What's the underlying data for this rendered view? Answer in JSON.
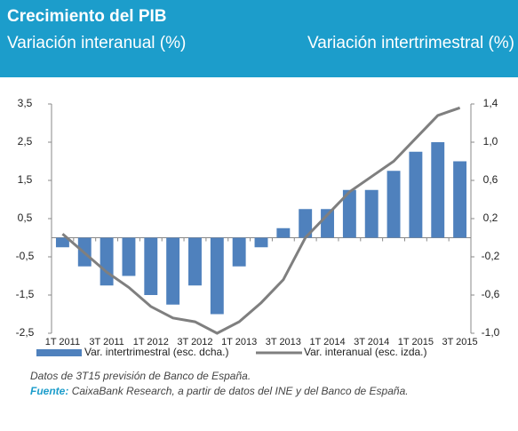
{
  "header": {
    "title": "Crecimiento del PIB",
    "subtitle_left": "Variación interanual (%)",
    "subtitle_right": "Variación intertrimestral (%)"
  },
  "chart_data": {
    "type": "bar_line",
    "categories": [
      "1T 2011",
      null,
      "3T 2011",
      null,
      "1T 2012",
      null,
      "3T 2012",
      null,
      "1T 2013",
      null,
      "3T 2013",
      null,
      "1T 2014",
      null,
      "3T 2014",
      null,
      "1T 2015",
      null,
      "3T 2015"
    ],
    "series": [
      {
        "name": "Var. intertrimestral (esc. dcha.)",
        "type": "bar",
        "axis": "y2",
        "color": "#4f81bd",
        "values": [
          -0.1,
          -0.3,
          -0.5,
          -0.4,
          -0.6,
          -0.7,
          -0.5,
          -0.8,
          -0.3,
          -0.1,
          0.1,
          0.3,
          0.3,
          0.5,
          0.5,
          0.7,
          0.9,
          1.0,
          0.8
        ]
      },
      {
        "name": "Var. interanual (esc. izda.)",
        "type": "line",
        "color": "#7f7f7f",
        "values": [
          0.1,
          -0.4,
          -0.9,
          -1.3,
          -1.8,
          -2.1,
          -2.2,
          -2.5,
          -2.2,
          -1.7,
          -1.1,
          0.0,
          0.6,
          1.2,
          1.6,
          2.0,
          2.6,
          3.2,
          3.4
        ]
      }
    ],
    "ylim": [
      -2.5,
      3.5
    ],
    "yticks": [
      {
        "value": -2.5,
        "label": "-2,5"
      },
      {
        "value": -1.5,
        "label": "-1,5"
      },
      {
        "value": -0.5,
        "label": "-0,5"
      },
      {
        "value": 0.5,
        "label": "0,5"
      },
      {
        "value": 1.5,
        "label": "1,5"
      },
      {
        "value": 2.5,
        "label": "2,5"
      },
      {
        "value": 3.5,
        "label": "3,5"
      }
    ],
    "y2lim": [
      -1.0,
      1.4
    ],
    "y2ticks": [
      {
        "value": -1.0,
        "label": "-1,0"
      },
      {
        "value": -0.6,
        "label": "-0,6"
      },
      {
        "value": -0.2,
        "label": "-0,2"
      },
      {
        "value": 0.2,
        "label": "0,2"
      },
      {
        "value": 0.6,
        "label": "0,6"
      },
      {
        "value": 1.0,
        "label": "1,0"
      },
      {
        "value": 1.4,
        "label": "1,4"
      }
    ],
    "grid": false,
    "legend": "bottom"
  },
  "notes": {
    "note": "Datos de 3T15 previsión de Banco de España.",
    "source_label": "Fuente:",
    "source": "CaixaBank Research, a partir de datos del INE y del Banco de España."
  }
}
